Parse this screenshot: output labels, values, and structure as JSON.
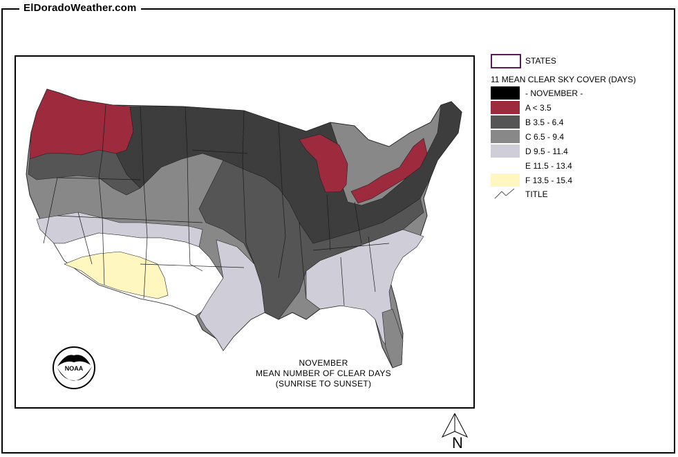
{
  "site": {
    "title": "ElDoradoWeather.com"
  },
  "map": {
    "caption": [
      "NOVEMBER",
      "MEAN NUMBER OF CLEAR DAYS",
      "(SUNRISE TO SUNSET)"
    ],
    "logo_icon": "noaa-logo",
    "north_arrow_label": "N"
  },
  "legend": {
    "states_label": "STATES",
    "title": "11 MEAN CLEAR SKY COVER (DAYS)",
    "classes": [
      {
        "label": "- NOVEMBER -",
        "color": "#000000"
      },
      {
        "label": "A < 3.5",
        "color": "#9e2a3e"
      },
      {
        "label": "B 3.5 - 6.4",
        "color": "#555555"
      },
      {
        "label": "C 6.5 - 9.4",
        "color": "#888888"
      },
      {
        "label": "D 9.5 - 11.4",
        "color": "#cfcdd8"
      },
      {
        "label": "E 11.5 - 13.4",
        "color": "#ffffff"
      },
      {
        "label": "F 13.5 - 15.4",
        "color": "#fff7bf"
      }
    ],
    "title_layer_label": "TITLE"
  },
  "colors": {
    "a": "#9e2a3e",
    "b": "#555555",
    "b2": "#3d3d3d",
    "c": "#888888",
    "d": "#cfcdd8",
    "e": "#ffffff",
    "f": "#fff7bf",
    "states_outline": "#5a1a5a"
  }
}
